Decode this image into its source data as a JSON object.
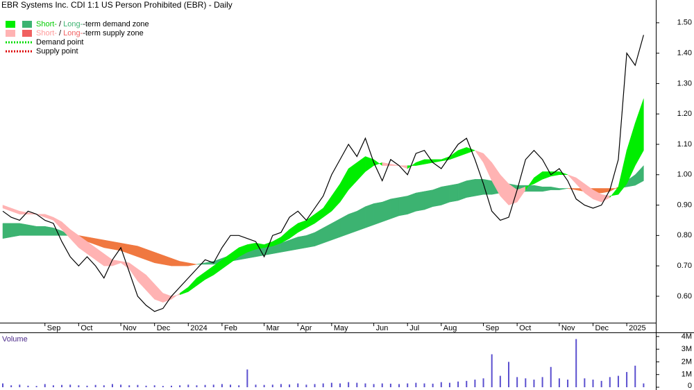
{
  "chart_data": {
    "type": "zone",
    "title": "EBR Systems Inc. CDI 1:1 US Person Prohibited (EBR) - Daily",
    "legend": [
      {
        "parts": [
          "Short-",
          " / ",
          "Long-",
          "-term demand zone"
        ]
      },
      {
        "parts": [
          "Short-",
          " / ",
          "Long-",
          "-term supply zone"
        ]
      },
      {
        "parts": [
          "Demand point"
        ]
      },
      {
        "parts": [
          "Supply point"
        ]
      }
    ],
    "categories": [
      null,
      null,
      null,
      null,
      null,
      "Sep",
      null,
      null,
      null,
      "Oct",
      null,
      null,
      null,
      null,
      "Nov",
      null,
      null,
      null,
      "Dec",
      null,
      null,
      null,
      "2024",
      null,
      null,
      null,
      "Feb",
      null,
      null,
      null,
      null,
      "Mar",
      null,
      null,
      null,
      "Apr",
      null,
      null,
      null,
      "May",
      null,
      null,
      null,
      null,
      "Jun",
      null,
      null,
      null,
      "Jul",
      null,
      null,
      null,
      "Aug",
      null,
      null,
      null,
      null,
      "Sep",
      null,
      null,
      null,
      "Oct",
      null,
      null,
      null,
      null,
      "Nov",
      null,
      null,
      null,
      "Dec",
      null,
      null,
      null,
      "2025",
      null,
      null
    ],
    "price": {
      "color": "#000000",
      "values": [
        0.88,
        0.86,
        0.85,
        0.88,
        0.87,
        0.85,
        0.84,
        0.78,
        0.73,
        0.7,
        0.73,
        0.7,
        0.66,
        0.72,
        0.76,
        0.68,
        0.6,
        0.57,
        0.55,
        0.56,
        0.6,
        0.63,
        0.66,
        0.69,
        0.72,
        0.71,
        0.76,
        0.8,
        0.8,
        0.79,
        0.78,
        0.73,
        0.8,
        0.81,
        0.86,
        0.88,
        0.85,
        0.89,
        0.93,
        1.0,
        1.05,
        1.1,
        1.06,
        1.12,
        1.04,
        0.98,
        1.05,
        1.03,
        1.0,
        1.07,
        1.08,
        1.04,
        1.02,
        1.06,
        1.1,
        1.12,
        1.05,
        0.97,
        0.88,
        0.85,
        0.86,
        0.95,
        1.05,
        1.08,
        1.05,
        1.0,
        1.02,
        0.98,
        0.92,
        0.9,
        0.89,
        0.9,
        0.95,
        1.05,
        1.4,
        1.36,
        1.46
      ]
    },
    "zones": [
      {
        "demand_color": "#3cb371",
        "supply_color": "#f07840",
        "fast": [
          0.84,
          0.84,
          0.84,
          0.835,
          0.83,
          0.83,
          0.825,
          0.815,
          0.8,
          0.79,
          0.78,
          0.77,
          0.76,
          0.755,
          0.75,
          0.74,
          0.73,
          0.72,
          0.71,
          0.705,
          0.7,
          0.7,
          0.7,
          0.705,
          0.71,
          0.715,
          0.725,
          0.735,
          0.745,
          0.75,
          0.755,
          0.76,
          0.765,
          0.775,
          0.785,
          0.795,
          0.8,
          0.81,
          0.825,
          0.84,
          0.855,
          0.87,
          0.88,
          0.895,
          0.905,
          0.91,
          0.92,
          0.925,
          0.93,
          0.94,
          0.945,
          0.95,
          0.96,
          0.965,
          0.97,
          0.98,
          0.985,
          0.985,
          0.98,
          0.975,
          0.97,
          0.965,
          0.965,
          0.965,
          0.96,
          0.96,
          0.955,
          0.955,
          0.95,
          0.945,
          0.94,
          0.94,
          0.945,
          0.96,
          0.98,
          1.0,
          1.03
        ],
        "slow": [
          0.79,
          0.795,
          0.8,
          0.8,
          0.8,
          0.8,
          0.8,
          0.8,
          0.8,
          0.8,
          0.795,
          0.79,
          0.785,
          0.78,
          0.775,
          0.77,
          0.765,
          0.755,
          0.745,
          0.735,
          0.725,
          0.715,
          0.71,
          0.705,
          0.705,
          0.705,
          0.71,
          0.715,
          0.72,
          0.725,
          0.73,
          0.735,
          0.74,
          0.745,
          0.75,
          0.755,
          0.76,
          0.765,
          0.775,
          0.785,
          0.795,
          0.805,
          0.815,
          0.825,
          0.835,
          0.845,
          0.855,
          0.865,
          0.87,
          0.88,
          0.885,
          0.895,
          0.9,
          0.91,
          0.915,
          0.925,
          0.93,
          0.935,
          0.935,
          0.94,
          0.94,
          0.94,
          0.945,
          0.945,
          0.945,
          0.95,
          0.95,
          0.955,
          0.955,
          0.955,
          0.955,
          0.955,
          0.955,
          0.955,
          0.96,
          0.965,
          0.98
        ]
      },
      {
        "demand_color": "#00ee00",
        "supply_color": "#ffb3b3",
        "fast": [
          0.89,
          0.88,
          0.87,
          0.87,
          0.87,
          0.86,
          0.85,
          0.82,
          0.79,
          0.76,
          0.74,
          0.72,
          0.7,
          0.7,
          0.71,
          0.69,
          0.65,
          0.62,
          0.59,
          0.58,
          0.59,
          0.61,
          0.63,
          0.66,
          0.68,
          0.7,
          0.72,
          0.74,
          0.76,
          0.77,
          0.775,
          0.77,
          0.78,
          0.795,
          0.82,
          0.84,
          0.85,
          0.87,
          0.89,
          0.93,
          0.97,
          1.02,
          1.04,
          1.06,
          1.05,
          1.03,
          1.03,
          1.03,
          1.02,
          1.04,
          1.05,
          1.05,
          1.05,
          1.06,
          1.08,
          1.09,
          1.08,
          1.04,
          0.98,
          0.93,
          0.9,
          0.91,
          0.95,
          0.99,
          1.01,
          1.01,
          1.01,
          1.0,
          0.97,
          0.94,
          0.92,
          0.91,
          0.925,
          0.96,
          1.08,
          1.17,
          1.25
        ],
        "slow": [
          0.9,
          0.89,
          0.88,
          0.875,
          0.87,
          0.87,
          0.86,
          0.845,
          0.82,
          0.8,
          0.78,
          0.76,
          0.74,
          0.72,
          0.715,
          0.71,
          0.69,
          0.67,
          0.64,
          0.61,
          0.6,
          0.605,
          0.615,
          0.635,
          0.655,
          0.67,
          0.69,
          0.71,
          0.73,
          0.745,
          0.755,
          0.76,
          0.765,
          0.775,
          0.79,
          0.81,
          0.825,
          0.84,
          0.86,
          0.88,
          0.91,
          0.95,
          0.98,
          1.01,
          1.03,
          1.04,
          1.035,
          1.03,
          1.03,
          1.03,
          1.035,
          1.04,
          1.045,
          1.05,
          1.06,
          1.07,
          1.08,
          1.07,
          1.04,
          1.0,
          0.97,
          0.95,
          0.96,
          0.97,
          0.985,
          0.995,
          1.0,
          1.0,
          0.99,
          0.97,
          0.95,
          0.935,
          0.93,
          0.935,
          0.97,
          1.03,
          1.08
        ]
      }
    ],
    "ylim": [
      0.513,
      1.575
    ],
    "yticks": [
      {
        "value": 0.6,
        "label": "0.60"
      },
      {
        "value": 0.7,
        "label": "0.70"
      },
      {
        "value": 0.8,
        "label": "0.80"
      },
      {
        "value": 0.9,
        "label": "0.90"
      },
      {
        "value": 1.0,
        "label": "1.00"
      },
      {
        "value": 1.1,
        "label": "1.10"
      },
      {
        "value": 1.2,
        "label": "1.20"
      },
      {
        "value": 1.3,
        "label": "1.30"
      },
      {
        "value": 1.4,
        "label": "1.40"
      },
      {
        "value": 1.5,
        "label": "1.50"
      }
    ],
    "volume": {
      "title": "Volume",
      "color": "#5a4fcf",
      "values": [
        300000,
        150000,
        200000,
        120000,
        100000,
        250000,
        150000,
        180000,
        200000,
        150000,
        120000,
        180000,
        150000,
        250000,
        200000,
        150000,
        180000,
        120000,
        150000,
        100000,
        120000,
        150000,
        200000,
        150000,
        180000,
        200000,
        250000,
        200000,
        150000,
        1400000,
        200000,
        180000,
        200000,
        250000,
        220000,
        300000,
        200000,
        250000,
        300000,
        350000,
        300000,
        400000,
        350000,
        300000,
        250000,
        300000,
        280000,
        250000,
        300000,
        350000,
        300000,
        280000,
        400000,
        350000,
        450000,
        500000,
        600000,
        700000,
        2600000,
        900000,
        2000000,
        800000,
        700000,
        600000,
        800000,
        1600000,
        700000,
        600000,
        3800000,
        700000,
        600000,
        500000,
        800000,
        900000,
        1200000,
        1700000,
        300000
      ],
      "ylim": [
        0,
        4270000
      ],
      "yticks": [
        0,
        {
          "value": 1000000,
          "label": "1M"
        },
        {
          "value": 2000000,
          "label": "2M"
        },
        {
          "value": 3000000,
          "label": "3M"
        },
        {
          "value": 4000000,
          "label": "4M"
        }
      ]
    }
  }
}
